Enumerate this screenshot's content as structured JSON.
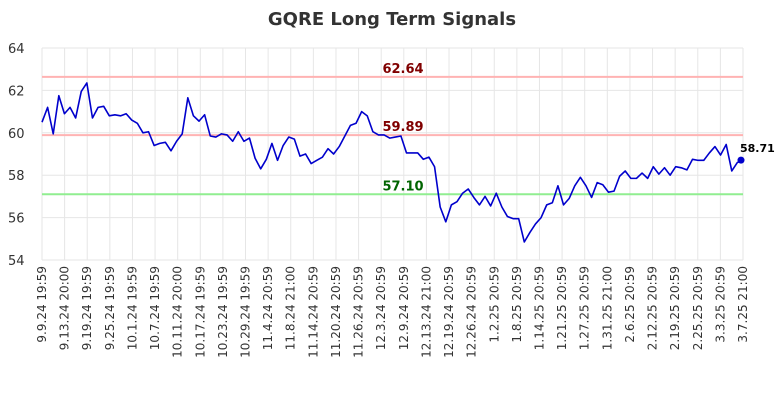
{
  "chart_data": {
    "type": "line",
    "title": "GQRE Long Term Signals",
    "xlabel": "",
    "ylabel": "",
    "ylim": [
      54,
      64
    ],
    "yticks": [
      "54",
      "56",
      "58",
      "60",
      "62",
      "64"
    ],
    "grid": true,
    "x_tick_labels": [
      "9.9.24 19:59",
      "9.13.24 20:00",
      "9.19.24 19:59",
      "9.25.24 19:59",
      "10.1.24 19:59",
      "10.7.24 19:59",
      "10.11.24 20:00",
      "10.17.24 19:59",
      "10.23.24 19:59",
      "10.29.24 19:59",
      "11.4.24 20:59",
      "11.8.24 21:00",
      "11.14.24 20:59",
      "11.20.24 20:59",
      "11.26.24 20:59",
      "12.3.24 20:59",
      "12.9.24 20:59",
      "12.13.24 21:00",
      "12.19.24 20:59",
      "12.26.24 20:59",
      "1.2.25 20:59",
      "1.8.25 20:59",
      "1.14.25 20:59",
      "1.21.25 20:59",
      "1.27.25 20:59",
      "1.31.25 21:00",
      "2.6.25 20:59",
      "2.12.25 20:59",
      "2.19.25 20:59",
      "2.25.25 20:59",
      "3.3.25 20:59",
      "3.7.25 21:00"
    ],
    "series": [
      {
        "color": "#0000cc",
        "values": [
          60.5,
          61.2,
          59.95,
          61.75,
          60.9,
          61.2,
          60.7,
          61.95,
          62.35,
          60.7,
          61.2,
          61.25,
          60.8,
          60.85,
          60.8,
          60.9,
          60.6,
          60.45,
          60.0,
          60.05,
          59.4,
          59.5,
          59.55,
          59.15,
          59.6,
          59.95,
          61.65,
          60.8,
          60.55,
          60.85,
          59.85,
          59.8,
          59.95,
          59.9,
          59.6,
          60.05,
          59.6,
          59.75,
          58.8,
          58.3,
          58.75,
          59.5,
          58.7,
          59.4,
          59.8,
          59.7,
          58.9,
          59.0,
          58.55,
          58.7,
          58.85,
          59.25,
          59.0,
          59.35,
          59.85,
          60.35,
          60.45,
          61.0,
          60.8,
          60.05,
          59.9,
          59.9,
          59.75,
          59.8,
          59.85,
          59.05,
          59.05,
          59.05,
          58.75,
          58.85,
          58.4,
          56.5,
          55.8,
          56.6,
          56.75,
          57.15,
          57.35,
          56.95,
          56.6,
          57.0,
          56.55,
          57.15,
          56.5,
          56.05,
          55.95,
          55.95,
          54.85,
          55.3,
          55.7,
          56.0,
          56.6,
          56.7,
          57.5,
          56.6,
          56.9,
          57.5,
          57.9,
          57.5,
          56.95,
          57.65,
          57.55,
          57.2,
          57.25,
          57.95,
          58.2,
          57.85,
          57.85,
          58.1,
          57.85,
          58.4,
          58.05,
          58.35,
          58.0,
          58.4,
          58.35,
          58.25,
          58.75,
          58.7,
          58.7,
          59.05,
          59.35,
          58.95,
          59.45,
          58.2,
          58.6,
          58.71
        ]
      }
    ],
    "reference_lines": [
      {
        "value": 62.64,
        "label": "62.64",
        "line_color": "#ffb3b3",
        "label_color": "#800000"
      },
      {
        "value": 59.89,
        "label": "59.89",
        "line_color": "#ffb3b3",
        "label_color": "#800000"
      },
      {
        "value": 57.1,
        "label": "57.10",
        "line_color": "#90ee90",
        "label_color": "#006400"
      }
    ],
    "last_point": {
      "value": 58.71,
      "label": "58.71"
    }
  }
}
